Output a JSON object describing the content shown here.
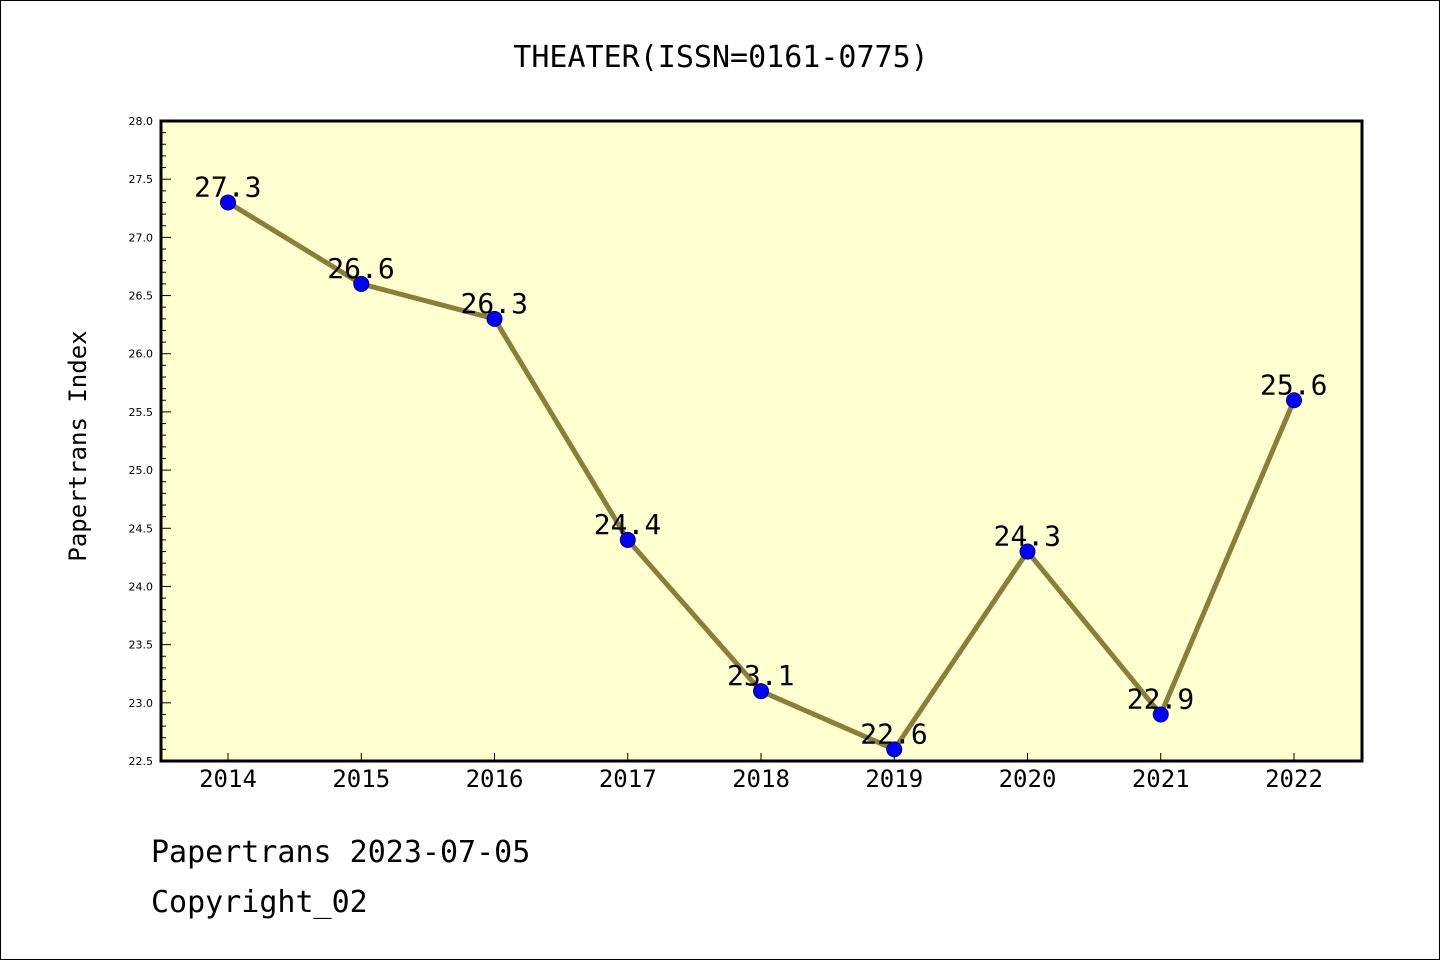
{
  "chart_data": {
    "type": "line",
    "title": "THEATER(ISSN=0161-0775)",
    "xlabel": "",
    "ylabel": "Papertrans Index",
    "categories": [
      "2014",
      "2015",
      "2016",
      "2017",
      "2018",
      "2019",
      "2020",
      "2021",
      "2022"
    ],
    "series": [
      {
        "values": [
          27.3,
          26.6,
          26.3,
          24.4,
          23.1,
          22.6,
          24.3,
          22.9,
          25.6
        ],
        "labels": [
          "27.3",
          "26.6",
          "26.3",
          "24.4",
          "23.1",
          "22.6",
          "24.3",
          "22.9",
          "25.6"
        ]
      }
    ],
    "ylim": [
      22.5,
      28.0
    ],
    "yticks": [
      "22.5",
      "23.0",
      "23.5",
      "24.0",
      "24.5",
      "25.0",
      "25.5",
      "26.0",
      "26.5",
      "27.0",
      "27.5",
      "28.0"
    ],
    "grid": false,
    "legend": "none",
    "colors": {
      "plot_background": "#ffffd0",
      "line": "#8b7d3a",
      "marker": "#0000ff"
    }
  },
  "footer": {
    "line1": "Papertrans 2023-07-05",
    "line2": "Copyright_02"
  }
}
